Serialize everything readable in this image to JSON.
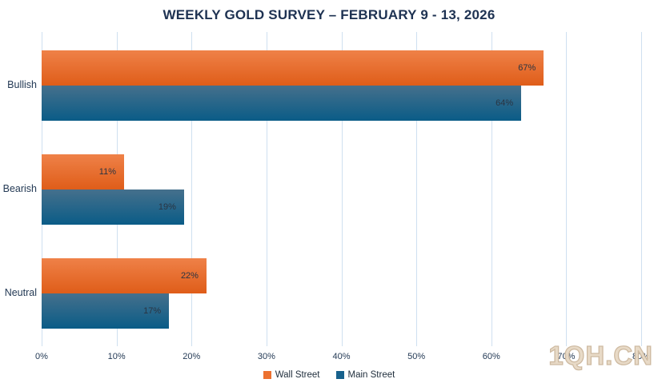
{
  "title": "WEEKLY GOLD SURVEY – FEBRUARY 9 - 13, 2026",
  "watermark": "1QH.CN",
  "colors": {
    "title_text": "#1e3252",
    "axis_text": "#243a55",
    "gridline": "#cfe0f0",
    "value_label_text": "#2a3442",
    "watermark_fill": "#e7d9c5",
    "watermark_outline": "#ccb79d",
    "wall_street_gradient_top": "#ef8148",
    "wall_street_gradient_bottom": "#df5d19",
    "main_street_gradient_top": "#45708c",
    "main_street_gradient_bottom": "#0a5c87",
    "wall_street_legend": "#ec7130",
    "main_street_legend": "#17618c"
  },
  "chart_data": {
    "type": "bar",
    "orientation": "horizontal",
    "title": "WEEKLY GOLD SURVEY – FEBRUARY 9 - 13, 2026",
    "categories": [
      "Bullish",
      "Bearish",
      "Neutral"
    ],
    "series": [
      {
        "name": "Wall Street",
        "values": [
          67,
          11,
          22
        ],
        "data_labels": [
          "67%",
          "11%",
          "22%"
        ]
      },
      {
        "name": "Main Street",
        "values": [
          64,
          19,
          17
        ],
        "data_labels": [
          "64%",
          "19%",
          "17%"
        ]
      }
    ],
    "xlabel": "",
    "ylabel": "",
    "xlim": [
      0,
      80
    ],
    "x_ticks": [
      "0%",
      "10%",
      "20%",
      "30%",
      "40%",
      "50%",
      "60%",
      "70%",
      "80%"
    ],
    "grid": true,
    "legend_position": "bottom"
  }
}
